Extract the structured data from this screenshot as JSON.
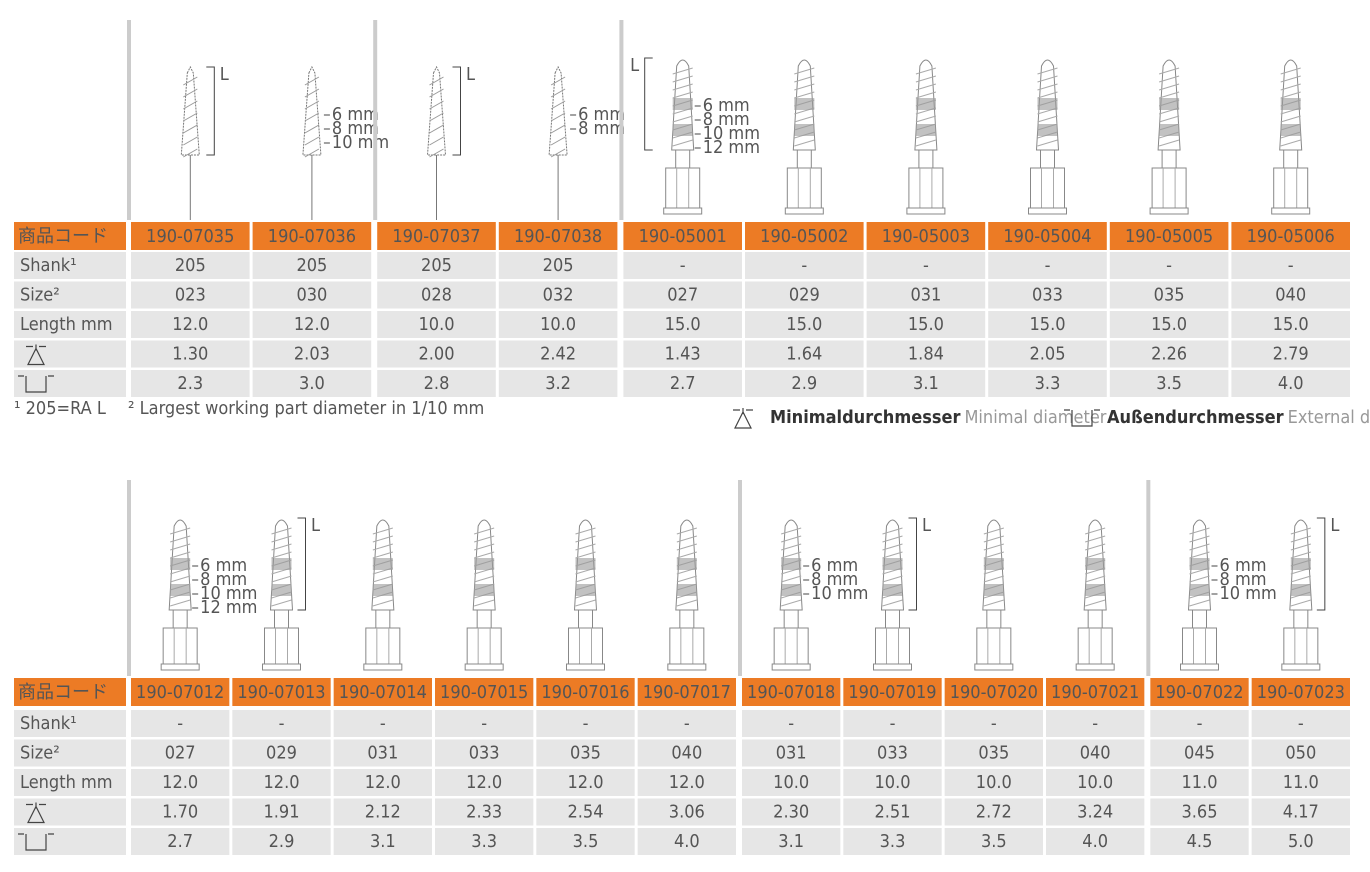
{
  "tables": [
    {
      "header_label": "商品コード",
      "row_labels": [
        "Shank¹",
        "Size²",
        "Length mm"
      ],
      "groups": [
        {
          "columns": [
            {
              "code": "190-07035",
              "shank": "205",
              "size": "023",
              "length": "12.0",
              "min_diameter": "1.30",
              "external_diameter": "2.3",
              "length_label": "L"
            },
            {
              "code": "190-07036",
              "shank": "205",
              "size": "030",
              "length": "12.0",
              "min_diameter": "2.03",
              "external_diameter": "3.0",
              "depth_marks": [
                "6 mm",
                "8 mm",
                "10 mm"
              ]
            }
          ]
        },
        {
          "columns": [
            {
              "code": "190-07037",
              "shank": "205",
              "size": "028",
              "length": "10.0",
              "min_diameter": "2.00",
              "external_diameter": "2.8",
              "length_label": "L"
            },
            {
              "code": "190-07038",
              "shank": "205",
              "size": "032",
              "length": "10.0",
              "min_diameter": "2.42",
              "external_diameter": "3.2",
              "depth_marks": [
                "6 mm",
                "8 mm"
              ]
            }
          ]
        },
        {
          "columns": [
            {
              "code": "190-05001",
              "shank": "-",
              "size": "027",
              "length": "15.0",
              "min_diameter": "1.43",
              "external_diameter": "2.7",
              "length_label": "L",
              "depth_marks": [
                "6 mm",
                "8 mm",
                "10 mm",
                "12 mm"
              ]
            },
            {
              "code": "190-05002",
              "shank": "-",
              "size": "029",
              "length": "15.0",
              "min_diameter": "1.64",
              "external_diameter": "2.9"
            },
            {
              "code": "190-05003",
              "shank": "-",
              "size": "031",
              "length": "15.0",
              "min_diameter": "1.84",
              "external_diameter": "3.1"
            },
            {
              "code": "190-05004",
              "shank": "-",
              "size": "033",
              "length": "15.0",
              "min_diameter": "2.05",
              "external_diameter": "3.3"
            },
            {
              "code": "190-05005",
              "shank": "-",
              "size": "035",
              "length": "15.0",
              "min_diameter": "2.26",
              "external_diameter": "3.5"
            },
            {
              "code": "190-05006",
              "shank": "-",
              "size": "040",
              "length": "15.0",
              "min_diameter": "2.79",
              "external_diameter": "4.0"
            }
          ]
        }
      ]
    },
    {
      "header_label": "商品コード",
      "row_labels": [
        "Shank¹",
        "Size²",
        "Length mm"
      ],
      "groups": [
        {
          "columns": [
            {
              "code": "190-07012",
              "shank": "-",
              "size": "027",
              "length": "12.0",
              "min_diameter": "1.70",
              "external_diameter": "2.7",
              "depth_marks": [
                "6 mm",
                "8 mm",
                "10 mm",
                "12 mm"
              ]
            },
            {
              "code": "190-07013",
              "shank": "-",
              "size": "029",
              "length": "12.0",
              "min_diameter": "1.91",
              "external_diameter": "2.9",
              "length_label": "L"
            },
            {
              "code": "190-07014",
              "shank": "-",
              "size": "031",
              "length": "12.0",
              "min_diameter": "2.12",
              "external_diameter": "3.1"
            },
            {
              "code": "190-07015",
              "shank": "-",
              "size": "033",
              "length": "12.0",
              "min_diameter": "2.33",
              "external_diameter": "3.3"
            },
            {
              "code": "190-07016",
              "shank": "-",
              "size": "035",
              "length": "12.0",
              "min_diameter": "2.54",
              "external_diameter": "3.5"
            },
            {
              "code": "190-07017",
              "shank": "-",
              "size": "040",
              "length": "12.0",
              "min_diameter": "3.06",
              "external_diameter": "4.0"
            }
          ]
        },
        {
          "columns": [
            {
              "code": "190-07018",
              "shank": "-",
              "size": "031",
              "length": "10.0",
              "min_diameter": "2.30",
              "external_diameter": "3.1",
              "depth_marks": [
                "6 mm",
                "8 mm",
                "10 mm"
              ]
            },
            {
              "code": "190-07019",
              "shank": "-",
              "size": "033",
              "length": "10.0",
              "min_diameter": "2.51",
              "external_diameter": "3.3",
              "length_label": "L"
            },
            {
              "code": "190-07020",
              "shank": "-",
              "size": "035",
              "length": "10.0",
              "min_diameter": "2.72",
              "external_diameter": "3.5"
            },
            {
              "code": "190-07021",
              "shank": "-",
              "size": "040",
              "length": "10.0",
              "min_diameter": "3.24",
              "external_diameter": "4.0"
            }
          ]
        },
        {
          "columns": [
            {
              "code": "190-07022",
              "shank": "-",
              "size": "045",
              "length": "11.0",
              "min_diameter": "3.65",
              "external_diameter": "4.5",
              "depth_marks": [
                "6 mm",
                "8 mm",
                "10 mm"
              ]
            },
            {
              "code": "190-07023",
              "shank": "-",
              "size": "050",
              "length": "11.0",
              "min_diameter": "4.17",
              "external_diameter": "5.0",
              "length_label": "L"
            }
          ]
        }
      ]
    }
  ],
  "footnotes": [
    "¹ 205=RA L",
    "² Largest working part diameter in 1/10 mm"
  ],
  "legend": [
    {
      "term": "Minimaldurchmesser",
      "translation": "Minimal diameter"
    },
    {
      "term": "Außendurchmesser",
      "translation": "External diameter"
    }
  ]
}
